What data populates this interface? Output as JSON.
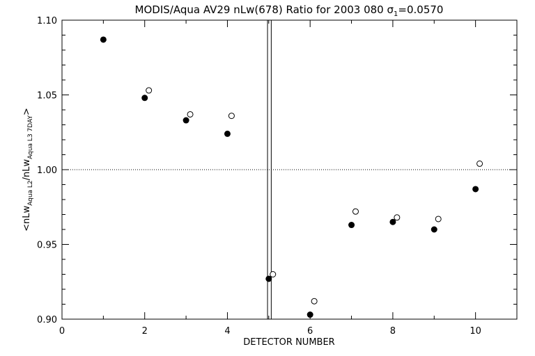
{
  "chart_data": {
    "type": "scatter",
    "title": "MODIS/Aqua AV29 nLw(678) Ratio for 2003 080 σ",
    "title_sub": "1",
    "title_tail": "=0.0570",
    "xlabel": "DETECTOR NUMBER",
    "ylabel": {
      "prefix": "<nLw",
      "sub1": "Aqua L2",
      "mid": "/nLw",
      "sub2": "Aqua L3 7DAY",
      "suffix": ">"
    },
    "xlim": [
      0,
      11
    ],
    "ylim": [
      0.9,
      1.1
    ],
    "x_ticks": [
      "0",
      "2",
      "4",
      "6",
      "8",
      "10"
    ],
    "y_ticks": [
      "0.90",
      "0.95",
      "1.00",
      "1.05",
      "1.10"
    ],
    "reference_line_y": 1.0,
    "vertical_lines_x": [
      4.97,
      5.06
    ],
    "series": [
      {
        "marker": "filled-circle",
        "x": [
          1,
          2,
          3,
          4,
          5,
          6,
          7,
          8,
          9,
          10
        ],
        "y": [
          1.087,
          1.048,
          1.033,
          1.024,
          0.927,
          0.903,
          0.963,
          0.965,
          0.96,
          0.987
        ]
      },
      {
        "marker": "open-circle",
        "x": [
          2.1,
          3.1,
          4.1,
          5.1,
          6.1,
          7.1,
          8.1,
          9.1,
          10.1
        ],
        "y": [
          1.053,
          1.037,
          1.036,
          0.93,
          0.912,
          0.972,
          0.968,
          0.967,
          1.004
        ]
      }
    ],
    "grid": false
  }
}
